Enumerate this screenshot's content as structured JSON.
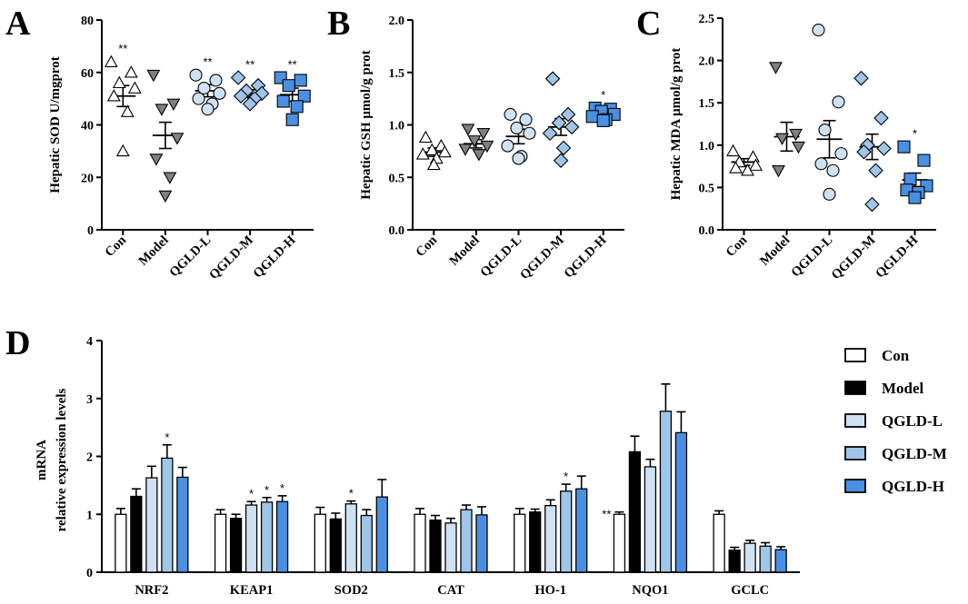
{
  "colors": {
    "Con": "#ffffff",
    "Model": "#000000",
    "QGLD-L": "#cfe2f3",
    "QGLD-M": "#9fc5e8",
    "QGLD-H": "#4a90e2",
    "Model_point": "#808080"
  },
  "chart_data": [
    {
      "panel": "A",
      "type": "scatter",
      "ylabel": "Hepatic SOD U/mgprot",
      "ylim": [
        0,
        80
      ],
      "yticks": [
        "0",
        "20",
        "40",
        "60",
        "80"
      ],
      "categories": [
        "Con",
        "Model",
        "QGLD-L",
        "QGLD-M",
        "QGLD-H"
      ],
      "markers": [
        "triangle-up",
        "triangle-down",
        "circle",
        "diamond",
        "square"
      ],
      "significance": [
        "**",
        "",
        "**",
        "**",
        "**"
      ],
      "series": [
        {
          "name": "Con",
          "mean": 51,
          "sem": 4,
          "points": [
            64,
            60,
            56,
            54,
            51,
            45,
            30
          ]
        },
        {
          "name": "Model",
          "mean": 36,
          "sem": 5,
          "points": [
            59,
            48,
            46,
            35,
            27,
            20,
            13
          ]
        },
        {
          "name": "QGLD-L",
          "mean": 53,
          "sem": 2.3,
          "points": [
            59,
            57,
            54,
            52,
            50,
            48,
            46
          ]
        },
        {
          "name": "QGLD-M",
          "mean": 52,
          "sem": 1.4,
          "points": [
            58,
            55,
            53,
            52,
            51,
            50,
            48
          ]
        },
        {
          "name": "QGLD-H",
          "mean": 51.5,
          "sem": 2.5,
          "points": [
            58,
            57,
            55,
            51,
            49,
            47,
            42
          ]
        }
      ]
    },
    {
      "panel": "B",
      "type": "scatter",
      "ylabel": "Hepatic GSH μmol/g prot",
      "ylim": [
        0,
        2.0
      ],
      "yticks": [
        "0.0",
        "0.5",
        "1.0",
        "1.5",
        "2.0"
      ],
      "categories": [
        "Con",
        "Model",
        "QGLD-L",
        "QGLD-M",
        "QGLD-H"
      ],
      "markers": [
        "triangle-up",
        "triangle-down",
        "circle",
        "diamond",
        "square"
      ],
      "significance": [
        "",
        "",
        "",
        "",
        "*"
      ],
      "series": [
        {
          "name": "Con",
          "mean": 0.74,
          "sem": 0.04,
          "points": [
            0.88,
            0.8,
            0.76,
            0.74,
            0.72,
            0.68,
            0.62
          ]
        },
        {
          "name": "Model",
          "mean": 0.82,
          "sem": 0.04,
          "points": [
            0.96,
            0.92,
            0.85,
            0.8,
            0.77,
            0.72
          ]
        },
        {
          "name": "QGLD-L",
          "mean": 0.89,
          "sem": 0.07,
          "points": [
            1.1,
            1.05,
            0.97,
            0.92,
            0.8,
            0.7,
            0.68
          ]
        },
        {
          "name": "QGLD-M",
          "mean": 0.98,
          "sem": 0.08,
          "points": [
            1.44,
            1.1,
            1.02,
            0.98,
            0.92,
            0.78,
            0.66
          ]
        },
        {
          "name": "QGLD-H",
          "mean": 1.1,
          "sem": 0.03,
          "points": [
            1.16,
            1.15,
            1.13,
            1.1,
            1.08,
            1.05,
            1.04
          ]
        }
      ]
    },
    {
      "panel": "C",
      "type": "scatter",
      "ylabel": "Hepatic MDA μmol/g prot",
      "ylim": [
        0,
        2.5
      ],
      "yticks": [
        "0.0",
        "0.5",
        "1.0",
        "1.5",
        "2.0",
        "2.5"
      ],
      "categories": [
        "Con",
        "Model",
        "QGLD-L",
        "QGLD-M",
        "QGLD-H"
      ],
      "markers": [
        "triangle-up",
        "triangle-down",
        "circle",
        "diamond",
        "square"
      ],
      "significance": [
        "",
        "",
        "",
        "",
        "*"
      ],
      "series": [
        {
          "name": "Con",
          "mean": 0.8,
          "sem": 0.04,
          "points": [
            0.93,
            0.86,
            0.8,
            0.76,
            0.73,
            0.7
          ]
        },
        {
          "name": "Model",
          "mean": 1.1,
          "sem": 0.17,
          "points": [
            1.92,
            1.13,
            1.08,
            0.98,
            0.7
          ]
        },
        {
          "name": "QGLD-L",
          "mean": 1.07,
          "sem": 0.22,
          "points": [
            2.36,
            1.51,
            1.18,
            0.9,
            0.78,
            0.7,
            0.42
          ]
        },
        {
          "name": "QGLD-M",
          "mean": 0.98,
          "sem": 0.15,
          "points": [
            1.79,
            1.32,
            1.0,
            0.96,
            0.92,
            0.7,
            0.3
          ]
        },
        {
          "name": "QGLD-H",
          "mean": 0.59,
          "sem": 0.08,
          "points": [
            0.98,
            0.82,
            0.6,
            0.52,
            0.47,
            0.44,
            0.38
          ]
        }
      ]
    },
    {
      "panel": "D",
      "type": "bar",
      "ylabel_line1": "mRNA",
      "ylabel_line2": "relative expression levels",
      "ylim": [
        0,
        4
      ],
      "yticks": [
        "0",
        "1",
        "2",
        "3",
        "4"
      ],
      "categories": [
        "NRF2",
        "KEAP1",
        "SOD2",
        "CAT",
        "HO-1",
        "NQO1",
        "GCLC"
      ],
      "legend": [
        "Con",
        "Model",
        "QGLD-L",
        "QGLD-M",
        "QGLD-H"
      ],
      "series": [
        {
          "name": "Con",
          "values": [
            1.0,
            1.0,
            1.0,
            1.0,
            1.0,
            1.0,
            1.0
          ],
          "errors": [
            0.1,
            0.08,
            0.12,
            0.1,
            0.1,
            0.04,
            0.06
          ],
          "significance": [
            "",
            "",
            "",
            "",
            "",
            "**",
            ""
          ]
        },
        {
          "name": "Model",
          "values": [
            1.31,
            0.93,
            0.92,
            0.9,
            1.04,
            2.08,
            0.38
          ],
          "errors": [
            0.13,
            0.07,
            0.1,
            0.08,
            0.05,
            0.27,
            0.05
          ],
          "significance": [
            "",
            "",
            "",
            "",
            "",
            "",
            ""
          ]
        },
        {
          "name": "QGLD-L",
          "values": [
            1.63,
            1.16,
            1.18,
            0.85,
            1.15,
            1.82,
            0.5
          ],
          "errors": [
            0.2,
            0.06,
            0.05,
            0.08,
            0.1,
            0.13,
            0.05
          ],
          "significance": [
            "",
            "*",
            "*",
            "",
            "",
            "",
            ""
          ]
        },
        {
          "name": "QGLD-M",
          "values": [
            1.97,
            1.21,
            0.98,
            1.08,
            1.4,
            2.78,
            0.45
          ],
          "errors": [
            0.23,
            0.08,
            0.1,
            0.08,
            0.12,
            0.47,
            0.06
          ],
          "significance": [
            "*",
            "*",
            "",
            "",
            "*",
            "",
            ""
          ]
        },
        {
          "name": "QGLD-H",
          "values": [
            1.64,
            1.22,
            1.3,
            0.99,
            1.44,
            2.41,
            0.39
          ],
          "errors": [
            0.17,
            0.1,
            0.3,
            0.14,
            0.22,
            0.36,
            0.05
          ],
          "significance": [
            "",
            "*",
            "",
            "",
            "",
            "",
            ""
          ]
        }
      ]
    }
  ]
}
